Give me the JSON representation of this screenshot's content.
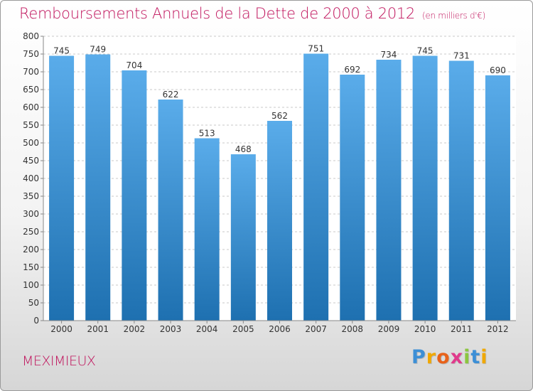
{
  "header": {
    "title": "Remboursements Annuels de la Dette de 2000 à 2012",
    "subtitle": "(en milliers d'€)"
  },
  "footer": {
    "region": "MEXIMIEUX",
    "logo_letters": [
      "P",
      "r",
      "o",
      "x",
      "i",
      "t",
      "i"
    ]
  },
  "colors": {
    "title": "#c0135c",
    "bar_top": "#5aacea",
    "bar_bottom": "#1e70b0",
    "grid": "#c8c8c8"
  },
  "chart_data": {
    "type": "bar",
    "categories": [
      "2000",
      "2001",
      "2002",
      "2003",
      "2004",
      "2005",
      "2006",
      "2007",
      "2008",
      "2009",
      "2010",
      "2011",
      "2012"
    ],
    "values": [
      745,
      749,
      704,
      622,
      513,
      468,
      562,
      751,
      692,
      734,
      745,
      731,
      690
    ],
    "ylim": [
      0,
      800
    ],
    "yticks": [
      0,
      50,
      100,
      150,
      200,
      250,
      300,
      350,
      400,
      450,
      500,
      550,
      600,
      650,
      700,
      750,
      800
    ],
    "grid": true,
    "data_labels": true
  }
}
